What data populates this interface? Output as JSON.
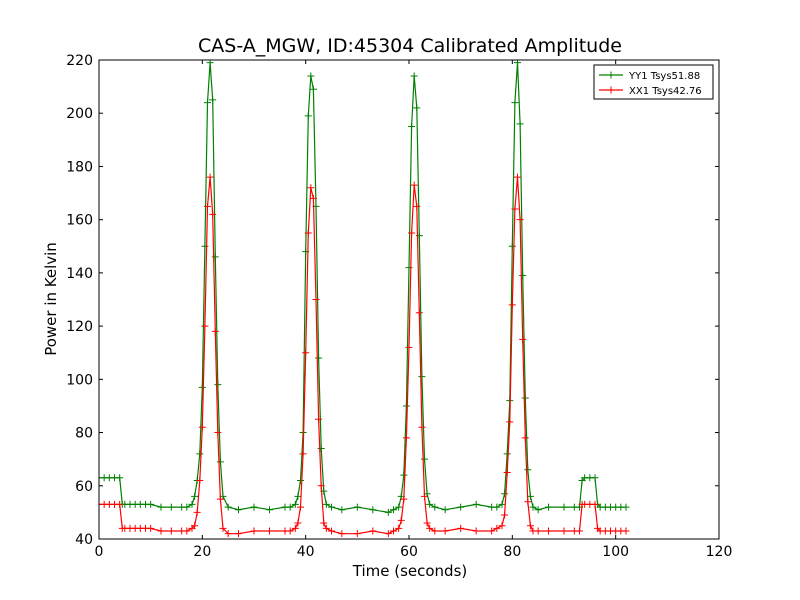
{
  "chart_data": {
    "type": "line",
    "title": "CAS-A_MGW, ID:45304 Calibrated Amplitude",
    "xlabel": "Time (seconds)",
    "ylabel": "Power in Kelvin",
    "xlim": [
      0,
      120
    ],
    "ylim": [
      40,
      220
    ],
    "xticks": [
      "0",
      "20",
      "40",
      "60",
      "80",
      "100",
      "120"
    ],
    "yticks": [
      "40",
      "60",
      "80",
      "100",
      "120",
      "140",
      "160",
      "180",
      "200",
      "220"
    ],
    "grid": false,
    "legend_position": "top-right",
    "marker": "plus",
    "series": [
      {
        "name": "YY1 Tsys51.88",
        "color": "#008000",
        "x": [
          0,
          1,
          2,
          3,
          4,
          4.5,
          5,
          6,
          7,
          8,
          9,
          10,
          12,
          14,
          16,
          17,
          18,
          18.5,
          19,
          19.5,
          20,
          20.5,
          21,
          21.5,
          22,
          22.5,
          23,
          23.5,
          24,
          25,
          27,
          30,
          33,
          36,
          37,
          38,
          38.5,
          39,
          39.5,
          40,
          40.5,
          41,
          41.5,
          42,
          42.5,
          43,
          43.5,
          44,
          45,
          47,
          50,
          53,
          56,
          57,
          58,
          58.5,
          59,
          59.5,
          60,
          60.5,
          61,
          61.5,
          62,
          62.5,
          63,
          63.5,
          64,
          65,
          67,
          70,
          73,
          76,
          77,
          78,
          78.5,
          79,
          79.5,
          80,
          80.5,
          81,
          81.5,
          82,
          82.5,
          83,
          83.5,
          84,
          85,
          87,
          90,
          92,
          93,
          93.5,
          94,
          95,
          96,
          96.5,
          97,
          98,
          99,
          100,
          101,
          102
        ],
        "y": [
          63,
          63,
          63,
          63,
          63,
          53,
          53,
          53,
          53,
          53,
          53,
          53,
          52,
          52,
          52,
          52,
          53,
          56,
          62,
          72,
          97,
          150,
          204,
          219,
          205,
          146,
          98,
          69,
          56,
          52,
          51,
          52,
          51,
          52,
          52,
          53,
          56,
          62,
          80,
          148,
          199,
          214,
          209,
          165,
          108,
          74,
          58,
          53,
          52,
          51,
          52,
          51,
          50,
          51,
          52,
          56,
          64,
          90,
          142,
          195,
          214,
          202,
          154,
          101,
          70,
          57,
          53,
          52,
          51,
          52,
          53,
          52,
          52,
          53,
          57,
          72,
          92,
          150,
          204,
          219,
          196,
          139,
          93,
          66,
          56,
          52,
          51,
          52,
          52,
          52,
          52,
          62,
          63,
          63,
          63,
          53,
          52,
          52,
          52,
          52,
          52,
          52
        ]
      },
      {
        "name": "XX1 Tsys42.76",
        "color": "#ff0000",
        "x": [
          0,
          1,
          2,
          3,
          4,
          4.5,
          5,
          6,
          7,
          8,
          9,
          10,
          12,
          14,
          16,
          17,
          18,
          18.5,
          19,
          19.5,
          20,
          20.5,
          21,
          21.5,
          22,
          22.5,
          23,
          23.5,
          24,
          25,
          27,
          30,
          33,
          36,
          37,
          38,
          38.5,
          39,
          39.5,
          40,
          40.5,
          41,
          41.5,
          42,
          42.5,
          43,
          43.5,
          44,
          45,
          47,
          50,
          53,
          56,
          57,
          58,
          58.5,
          59,
          59.5,
          60,
          60.5,
          61,
          61.5,
          62,
          62.5,
          63,
          63.5,
          64,
          65,
          67,
          70,
          73,
          76,
          77,
          78,
          78.5,
          79,
          79.5,
          80,
          80.5,
          81,
          81.5,
          82,
          82.5,
          83,
          83.5,
          84,
          85,
          87,
          90,
          92,
          93,
          93.5,
          94,
          95,
          96,
          96.5,
          97,
          98,
          99,
          100,
          101,
          102
        ],
        "y": [
          53,
          53,
          53,
          53,
          53,
          44,
          44,
          44,
          44,
          44,
          44,
          44,
          43,
          43,
          43,
          43,
          44,
          45,
          50,
          62,
          82,
          120,
          165,
          176,
          162,
          118,
          80,
          55,
          44,
          42,
          42,
          43,
          43,
          43,
          43,
          44,
          46,
          52,
          72,
          110,
          155,
          172,
          168,
          130,
          85,
          60,
          46,
          44,
          43,
          42,
          42,
          43,
          42,
          43,
          44,
          47,
          55,
          78,
          112,
          155,
          173,
          165,
          125,
          82,
          56,
          46,
          44,
          43,
          43,
          44,
          43,
          43,
          44,
          45,
          49,
          65,
          84,
          128,
          164,
          176,
          160,
          115,
          78,
          54,
          45,
          43,
          43,
          43,
          43,
          43,
          43,
          53,
          53,
          53,
          53,
          44,
          43,
          43,
          43,
          43,
          43,
          43
        ]
      }
    ]
  }
}
